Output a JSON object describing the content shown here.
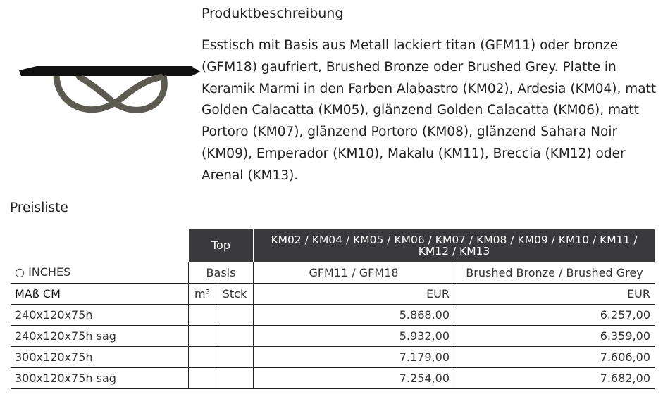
{
  "product": {
    "title": "Produktbeschreibung",
    "description": "Esstisch mit Basis aus Metall lackiert titan (GFM11) oder bronze (GFM18) gaufriert, Brushed Bronze oder Brushed Grey. Platte in Keramik Marmi in den Farben Alabastro (KM02), Ardesia (KM04), matt Golden Calacatta (KM05), glänzend Golden Calacatta (KM06), matt Portoro (KM07), glänzend Portoro (KM08), glänzend Sahara Noir (KM09), Emperador (KM10), Makalu (KM11), Breccia (KM12) oder Arenal (KM13)."
  },
  "pricelist": {
    "title": "Preisliste",
    "top_label": "Top",
    "top_values": "KM02 / KM04 / KM05 / KM06 / KM07 / KM08 / KM09 / KM10 / KM11 / KM12 / KM13",
    "inches_label": "INCHES",
    "basis_label": "Basis",
    "basis_1": "GFM11 / GFM18",
    "basis_2": "Brushed Bronze / Brushed Grey",
    "size_label": "MAß CM",
    "m3_label": "m³",
    "stck_label": "Stck",
    "currency": "EUR",
    "rows": [
      {
        "size": "240x120x75h",
        "p1": "5.868,00",
        "p2": "6.257,00"
      },
      {
        "size": "240x120x75h sag",
        "p1": "5.932,00",
        "p2": "6.359,00"
      },
      {
        "size": "300x120x75h",
        "p1": "7.179,00",
        "p2": "7.606,00"
      },
      {
        "size": "300x120x75h sag",
        "p1": "7.254,00",
        "p2": "7.682,00"
      }
    ]
  }
}
